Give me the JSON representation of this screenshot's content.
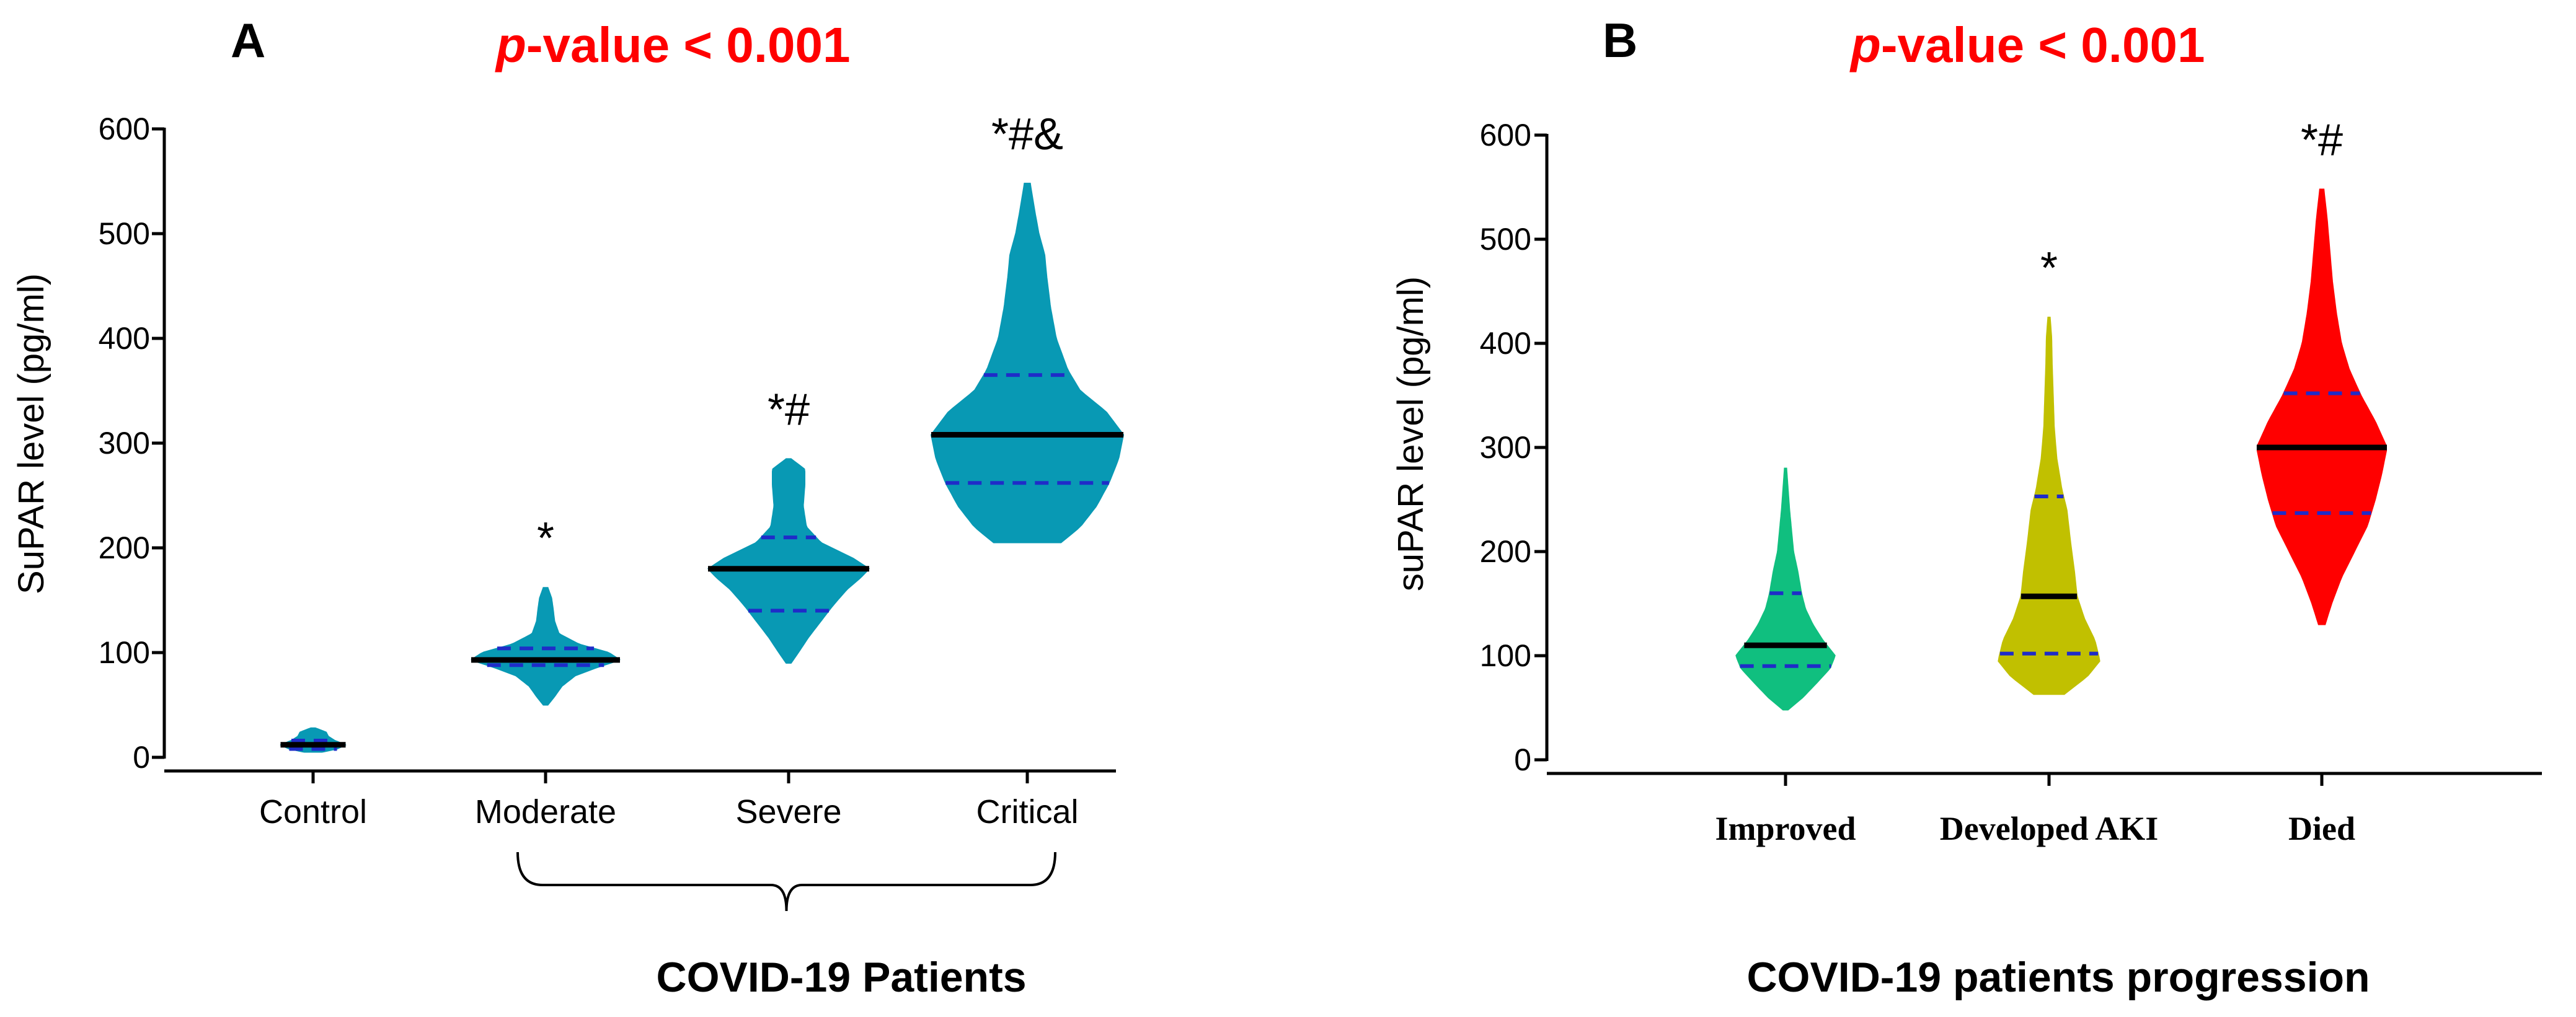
{
  "chart_data": [
    {
      "type": "violin",
      "panel": "A",
      "title": "p-value < 0.001",
      "title_italic_part": "p",
      "title_rest": "-value < 0.001",
      "ylabel": "SuPAR level (pg/ml)",
      "xlabel": "COVID-19 Patients",
      "ylim": [
        0,
        600
      ],
      "yticks": [
        "0",
        "100",
        "200",
        "300",
        "400",
        "500",
        "600"
      ],
      "categories": [
        "Control",
        "Moderate",
        "Severe",
        "Critical"
      ],
      "color": "#0899b4",
      "bracket_groups": [
        "Moderate",
        "Severe",
        "Critical"
      ],
      "series": [
        {
          "name": "Control",
          "median": 12,
          "q1": 8,
          "q3": 16,
          "min": 5,
          "max": 28,
          "profile": [
            [
              5,
              0.2
            ],
            [
              8,
              0.55
            ],
            [
              12,
              0.75
            ],
            [
              16,
              0.5
            ],
            [
              20,
              0.35
            ],
            [
              24,
              0.3
            ],
            [
              28,
              0.05
            ]
          ],
          "significance": ""
        },
        {
          "name": "Moderate",
          "median": 93,
          "q1": 88,
          "q3": 104,
          "min": 50,
          "max": 162,
          "profile": [
            [
              50,
              0.03
            ],
            [
              58,
              0.12
            ],
            [
              68,
              0.22
            ],
            [
              78,
              0.4
            ],
            [
              86,
              0.7
            ],
            [
              93,
              1.0
            ],
            [
              100,
              0.85
            ],
            [
              108,
              0.45
            ],
            [
              118,
              0.18
            ],
            [
              130,
              0.12
            ],
            [
              142,
              0.1
            ],
            [
              152,
              0.08
            ],
            [
              162,
              0.03
            ]
          ],
          "significance": "*"
        },
        {
          "name": "Severe",
          "median": 180,
          "q1": 140,
          "q3": 210,
          "min": 90,
          "max": 285,
          "profile": [
            [
              90,
              0.03
            ],
            [
              100,
              0.12
            ],
            [
              115,
              0.25
            ],
            [
              130,
              0.4
            ],
            [
              145,
              0.55
            ],
            [
              160,
              0.72
            ],
            [
              172,
              0.9
            ],
            [
              180,
              1.0
            ],
            [
              190,
              0.8
            ],
            [
              205,
              0.4
            ],
            [
              220,
              0.22
            ],
            [
              240,
              0.18
            ],
            [
              260,
              0.2
            ],
            [
              275,
              0.2
            ],
            [
              285,
              0.03
            ]
          ],
          "significance": "*#"
        },
        {
          "name": "Critical",
          "median": 308,
          "q1": 262,
          "q3": 365,
          "min": 205,
          "max": 548,
          "profile": [
            [
              205,
              0.35
            ],
            [
              220,
              0.55
            ],
            [
              240,
              0.72
            ],
            [
              262,
              0.85
            ],
            [
              285,
              0.95
            ],
            [
              308,
              1.0
            ],
            [
              330,
              0.82
            ],
            [
              350,
              0.55
            ],
            [
              370,
              0.42
            ],
            [
              400,
              0.3
            ],
            [
              430,
              0.24
            ],
            [
              460,
              0.2
            ],
            [
              480,
              0.18
            ],
            [
              500,
              0.12
            ],
            [
              520,
              0.08
            ],
            [
              548,
              0.03
            ]
          ],
          "significance": "*#&"
        }
      ]
    },
    {
      "type": "violin",
      "panel": "B",
      "title": "p-value < 0.001",
      "title_italic_part": "p",
      "title_rest": "-value < 0.001",
      "ylabel": "suPAR level (pg/ml)",
      "xlabel": "COVID-19 patients progression",
      "ylim": [
        0,
        600
      ],
      "yticks": [
        "0",
        "100",
        "200",
        "300",
        "400",
        "500",
        "600"
      ],
      "categories": [
        "Improved",
        "Developed AKI",
        "Died"
      ],
      "series": [
        {
          "name": "Improved",
          "color": "#10bf7f",
          "median": 110,
          "q1": 90,
          "q3": 160,
          "min": 48,
          "max": 280,
          "profile": [
            [
              48,
              0.05
            ],
            [
              60,
              0.35
            ],
            [
              75,
              0.65
            ],
            [
              88,
              0.9
            ],
            [
              100,
              1.0
            ],
            [
              115,
              0.75
            ],
            [
              130,
              0.55
            ],
            [
              145,
              0.4
            ],
            [
              160,
              0.32
            ],
            [
              180,
              0.25
            ],
            [
              200,
              0.16
            ],
            [
              220,
              0.12
            ],
            [
              240,
              0.08
            ],
            [
              260,
              0.05
            ],
            [
              280,
              0.02
            ]
          ],
          "significance": ""
        },
        {
          "name": "Developed AKI",
          "color": "#c1c000",
          "median": 157,
          "q1": 102,
          "q3": 253,
          "min": 63,
          "max": 425,
          "profile": [
            [
              63,
              0.3
            ],
            [
              80,
              0.75
            ],
            [
              95,
              1.0
            ],
            [
              115,
              0.9
            ],
            [
              135,
              0.7
            ],
            [
              157,
              0.55
            ],
            [
              180,
              0.5
            ],
            [
              210,
              0.42
            ],
            [
              240,
              0.35
            ],
            [
              260,
              0.25
            ],
            [
              290,
              0.15
            ],
            [
              320,
              0.1
            ],
            [
              350,
              0.08
            ],
            [
              380,
              0.06
            ],
            [
              405,
              0.05
            ],
            [
              425,
              0.02
            ]
          ],
          "significance": "*"
        },
        {
          "name": "Died",
          "color": "#ff0000",
          "median": 300,
          "q1": 237,
          "q3": 352,
          "min": 130,
          "max": 548,
          "profile": [
            [
              130,
              0.05
            ],
            [
              150,
              0.15
            ],
            [
              175,
              0.3
            ],
            [
              200,
              0.5
            ],
            [
              225,
              0.7
            ],
            [
              250,
              0.82
            ],
            [
              275,
              0.92
            ],
            [
              300,
              1.0
            ],
            [
              325,
              0.82
            ],
            [
              350,
              0.6
            ],
            [
              375,
              0.42
            ],
            [
              400,
              0.3
            ],
            [
              430,
              0.22
            ],
            [
              460,
              0.16
            ],
            [
              490,
              0.12
            ],
            [
              520,
              0.08
            ],
            [
              548,
              0.03
            ]
          ],
          "significance": "*#"
        }
      ]
    }
  ]
}
